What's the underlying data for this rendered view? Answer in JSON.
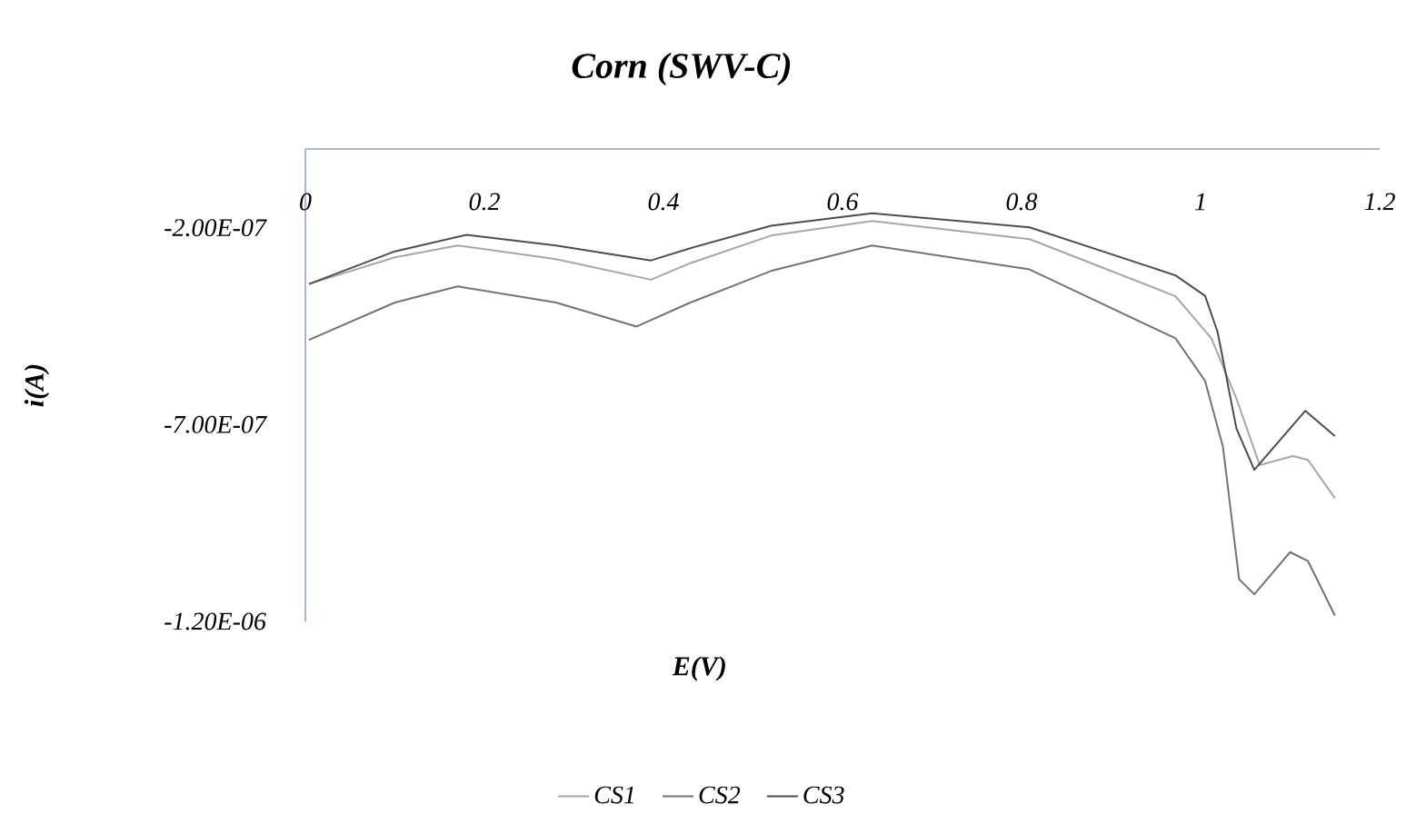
{
  "chart_data": {
    "type": "line",
    "title": "Corn (SWV-C)",
    "xlabel": "E(V)",
    "ylabel": "i(A)",
    "xlim": [
      0,
      1.2
    ],
    "xticks": [
      0,
      0.2,
      0.4,
      0.6,
      0.8,
      1,
      1.2
    ],
    "ylim": [
      -1.2e-06,
      0
    ],
    "yticks": [
      {
        "value": -1.2e-06,
        "label": "-1.20E-06"
      },
      {
        "value": -7e-07,
        "label": "-7.00E-07"
      },
      {
        "value": -2e-07,
        "label": "-2.00E-07"
      }
    ],
    "grid": false,
    "legend": "bottom",
    "marker": "none",
    "line_style": "solid",
    "series": [
      {
        "name": "CS1",
        "color": "#a6a6a6",
        "x": [
          0.004,
          0.1,
          0.17,
          0.28,
          0.386,
          0.43,
          0.52,
          0.633,
          0.809,
          0.972,
          1.012,
          1.04,
          1.066,
          1.103,
          1.12,
          1.15
        ],
        "values": [
          -3.43e-07,
          -2.75e-07,
          -2.45e-07,
          -2.8e-07,
          -3.32e-07,
          -2.9e-07,
          -2.2e-07,
          -1.83e-07,
          -2.29e-07,
          -3.74e-07,
          -4.81e-07,
          -6.34e-07,
          -8.03e-07,
          -7.8e-07,
          -7.9e-07,
          -8.87e-07
        ]
      },
      {
        "name": "CS2",
        "color": "#737373",
        "x": [
          0.004,
          0.1,
          0.17,
          0.28,
          0.37,
          0.43,
          0.52,
          0.633,
          0.809,
          0.972,
          1.005,
          1.025,
          1.043,
          1.06,
          1.1,
          1.12,
          1.15
        ],
        "values": [
          -4.85e-07,
          -3.9e-07,
          -3.49e-07,
          -3.9e-07,
          -4.51e-07,
          -3.9e-07,
          -3.1e-07,
          -2.45e-07,
          -3.06e-07,
          -4.81e-07,
          -5.89e-07,
          -7.57e-07,
          -1.093e-06,
          -1.131e-06,
          -1.024e-06,
          -1.047e-06,
          -1.185e-06
        ]
      },
      {
        "name": "CS3",
        "color": "#4d4d4d",
        "x": [
          0.004,
          0.1,
          0.18,
          0.28,
          0.386,
          0.43,
          0.52,
          0.633,
          0.809,
          0.972,
          1.005,
          1.019,
          1.04,
          1.06,
          1.117,
          1.15
        ],
        "values": [
          -3.43e-07,
          -2.6e-07,
          -2.18e-07,
          -2.45e-07,
          -2.83e-07,
          -2.52e-07,
          -1.95e-07,
          -1.63e-07,
          -1.99e-07,
          -3.21e-07,
          -3.73e-07,
          -4.65e-07,
          -7.1e-07,
          -8.15e-07,
          -6.65e-07,
          -7.29e-07
        ]
      }
    ]
  }
}
